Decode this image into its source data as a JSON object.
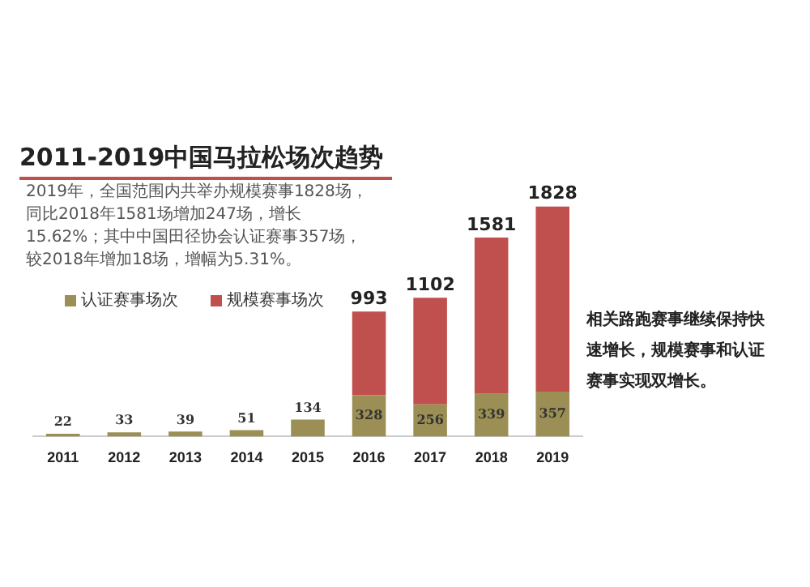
{
  "chart_data": {
    "type": "bar",
    "title": "2011-2019中国马拉松场次趋势",
    "subtitle": "2019年，全国范围内共举办规模赛事1828场，同比2018年1581场增加247场，增长15.62%；其中中国田径协会认证赛事357场，较2018年增加18场，增幅为5.31%。",
    "categories": [
      "2011",
      "2012",
      "2013",
      "2014",
      "2015",
      "2016",
      "2017",
      "2018",
      "2019"
    ],
    "stacked": true,
    "series": [
      {
        "name": "认证赛事场次",
        "color": "#9c8f55",
        "values": [
          22,
          33,
          39,
          51,
          134,
          328,
          256,
          339,
          357
        ],
        "value_labels": [
          "22",
          "33",
          "39",
          "51",
          "134",
          "328",
          "256",
          "339",
          "357"
        ]
      },
      {
        "name": "规模赛事场次",
        "color": "#c0504d",
        "values": [
          null,
          null,
          null,
          null,
          null,
          665,
          846,
          1242,
          1471
        ]
      }
    ],
    "totals": [
      null,
      null,
      null,
      null,
      null,
      "993",
      "1102",
      "1581",
      "1828"
    ],
    "legend": "left",
    "grid": false,
    "tick_labels": "x",
    "annotations": [
      "相关路跑赛事继续保持快速增长，规模赛事和认证赛事实现双增长。"
    ]
  }
}
